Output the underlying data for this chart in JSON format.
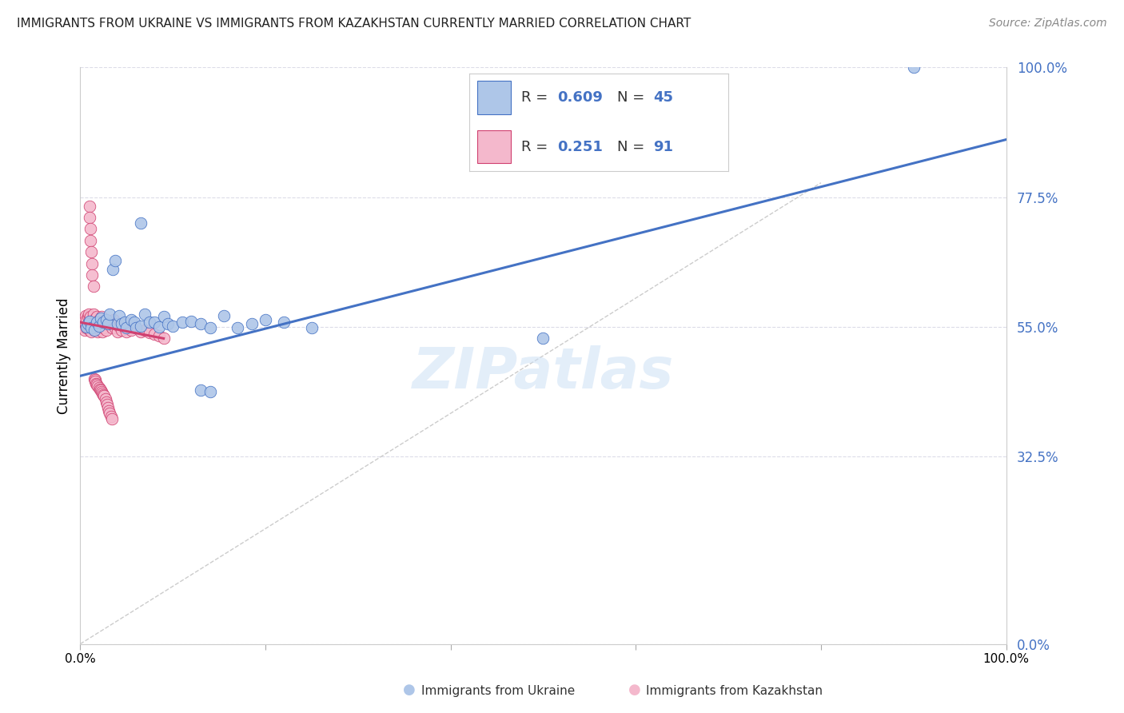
{
  "title": "IMMIGRANTS FROM UKRAINE VS IMMIGRANTS FROM KAZAKHSTAN CURRENTLY MARRIED CORRELATION CHART",
  "source": "Source: ZipAtlas.com",
  "ylabel": "Currently Married",
  "y_tick_labels": [
    "0.0%",
    "32.5%",
    "55.0%",
    "77.5%",
    "100.0%"
  ],
  "y_tick_values": [
    0.0,
    0.325,
    0.55,
    0.775,
    1.0
  ],
  "legend_ukraine_R": "0.609",
  "legend_ukraine_N": "45",
  "legend_kazakhstan_R": "0.251",
  "legend_kazakhstan_N": "91",
  "ukraine_fill_color": "#aec6e8",
  "ukraine_edge_color": "#4472c4",
  "kazakhstan_fill_color": "#f4b8cc",
  "kazakhstan_edge_color": "#d04070",
  "ukraine_line_color": "#4472c4",
  "kazakhstan_line_color": "#d04070",
  "diagonal_color": "#cccccc",
  "background_color": "#ffffff",
  "grid_color": "#dcdce8",
  "xlim": [
    0.0,
    1.0
  ],
  "ylim": [
    0.0,
    1.0
  ],
  "ukraine_x": [
    0.007,
    0.008,
    0.01,
    0.012,
    0.015,
    0.018,
    0.02,
    0.022,
    0.025,
    0.028,
    0.03,
    0.032,
    0.035,
    0.038,
    0.04,
    0.042,
    0.045,
    0.048,
    0.05,
    0.055,
    0.058,
    0.06,
    0.065,
    0.07,
    0.075,
    0.08,
    0.085,
    0.09,
    0.095,
    0.1,
    0.11,
    0.12,
    0.13,
    0.14,
    0.155,
    0.17,
    0.185,
    0.2,
    0.22,
    0.25,
    0.13,
    0.14,
    0.5,
    0.9,
    0.065
  ],
  "ukraine_y": [
    0.55,
    0.555,
    0.56,
    0.548,
    0.545,
    0.558,
    0.552,
    0.565,
    0.558,
    0.562,
    0.555,
    0.572,
    0.65,
    0.665,
    0.555,
    0.57,
    0.555,
    0.558,
    0.548,
    0.562,
    0.558,
    0.548,
    0.552,
    0.572,
    0.558,
    0.558,
    0.55,
    0.568,
    0.555,
    0.552,
    0.558,
    0.56,
    0.555,
    0.548,
    0.57,
    0.548,
    0.555,
    0.562,
    0.558,
    0.548,
    0.44,
    0.438,
    0.53,
    1.0,
    0.73
  ],
  "kazakhstan_x": [
    0.003,
    0.004,
    0.005,
    0.005,
    0.006,
    0.006,
    0.007,
    0.007,
    0.008,
    0.008,
    0.009,
    0.009,
    0.01,
    0.01,
    0.01,
    0.011,
    0.011,
    0.012,
    0.012,
    0.013,
    0.013,
    0.014,
    0.014,
    0.015,
    0.015,
    0.016,
    0.017,
    0.017,
    0.018,
    0.018,
    0.019,
    0.019,
    0.02,
    0.02,
    0.02,
    0.021,
    0.022,
    0.022,
    0.023,
    0.024,
    0.025,
    0.026,
    0.027,
    0.028,
    0.03,
    0.032,
    0.034,
    0.036,
    0.038,
    0.04,
    0.042,
    0.045,
    0.048,
    0.05,
    0.055,
    0.06,
    0.065,
    0.07,
    0.075,
    0.08,
    0.085,
    0.09,
    0.01,
    0.01,
    0.011,
    0.011,
    0.012,
    0.013,
    0.013,
    0.014,
    0.015,
    0.016,
    0.016,
    0.017,
    0.018,
    0.019,
    0.02,
    0.021,
    0.022,
    0.023,
    0.024,
    0.025,
    0.026,
    0.027,
    0.028,
    0.029,
    0.03,
    0.031,
    0.032,
    0.033,
    0.034
  ],
  "kazakhstan_y": [
    0.55,
    0.558,
    0.545,
    0.565,
    0.555,
    0.57,
    0.548,
    0.562,
    0.552,
    0.568,
    0.555,
    0.572,
    0.558,
    0.545,
    0.565,
    0.552,
    0.568,
    0.555,
    0.542,
    0.562,
    0.548,
    0.558,
    0.572,
    0.545,
    0.562,
    0.555,
    0.548,
    0.565,
    0.552,
    0.568,
    0.542,
    0.558,
    0.548,
    0.562,
    0.555,
    0.545,
    0.558,
    0.552,
    0.568,
    0.542,
    0.548,
    0.555,
    0.562,
    0.545,
    0.555,
    0.558,
    0.548,
    0.562,
    0.548,
    0.542,
    0.552,
    0.545,
    0.548,
    0.542,
    0.545,
    0.548,
    0.542,
    0.545,
    0.54,
    0.538,
    0.535,
    0.53,
    0.76,
    0.74,
    0.72,
    0.7,
    0.68,
    0.66,
    0.64,
    0.62,
    0.46,
    0.458,
    0.455,
    0.452,
    0.45,
    0.448,
    0.445,
    0.442,
    0.44,
    0.438,
    0.435,
    0.432,
    0.43,
    0.425,
    0.42,
    0.415,
    0.41,
    0.405,
    0.4,
    0.395,
    0.39
  ],
  "ukraine_line_x": [
    0.0,
    1.0
  ],
  "ukraine_line_y": [
    0.465,
    0.875
  ],
  "kazakhstan_line_x": [
    0.0,
    0.09
  ],
  "kazakhstan_line_y": [
    0.558,
    0.53
  ]
}
